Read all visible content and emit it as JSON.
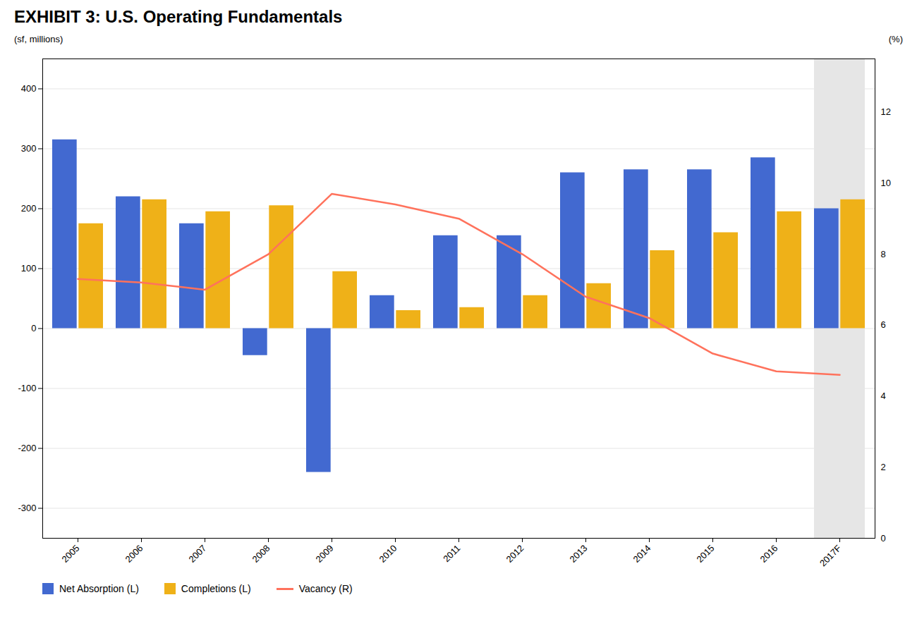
{
  "chart_data": {
    "type": "bar",
    "title": "EXHIBIT 3: U.S. Operating Fundamentals",
    "categories": [
      "2005",
      "2006",
      "2007",
      "2008",
      "2009",
      "2010",
      "2011",
      "2012",
      "2013",
      "2014",
      "2015",
      "2016",
      "2017F"
    ],
    "series": [
      {
        "name": "Net Absorption (L)",
        "values": [
          315,
          220,
          175,
          -45,
          -240,
          55,
          155,
          155,
          260,
          265,
          265,
          285,
          200
        ]
      },
      {
        "name": "Completions (L)",
        "values": [
          175,
          215,
          195,
          205,
          95,
          30,
          35,
          55,
          75,
          130,
          160,
          195,
          215
        ]
      },
      {
        "name": "Vacancy (R)",
        "type": "line",
        "axis": "y2",
        "values": [
          7.3,
          7.2,
          7.0,
          8.0,
          9.7,
          9.4,
          9.0,
          8.0,
          6.8,
          6.2,
          5.2,
          4.7,
          4.6
        ]
      }
    ],
    "ylabel": "(sf, millions)",
    "y2label": "(%)",
    "ylim": [
      -350,
      450
    ],
    "yticks": [
      -300,
      -200,
      -100,
      0,
      100,
      200,
      300,
      400
    ],
    "y2lim": [
      0,
      13.5
    ],
    "y2ticks": [
      0,
      2,
      4,
      6,
      8,
      10,
      12
    ],
    "grid": true,
    "legend": "lower left"
  }
}
